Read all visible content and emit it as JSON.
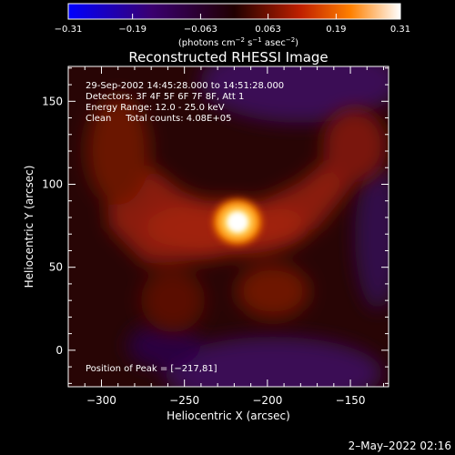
{
  "chart_data": {
    "type": "heatmap",
    "title": "Reconstructed RHESSI Image",
    "xlabel": "Heliocentric X (arcsec)",
    "ylabel": "Heliocentric Y (arcsec)",
    "xlim": [
      -320,
      -127
    ],
    "ylim": [
      -22,
      171
    ],
    "x_ticks": [
      -300,
      -250,
      -200,
      -150
    ],
    "y_ticks": [
      0,
      50,
      100,
      150
    ],
    "x_tick_labels": [
      "−300",
      "−250",
      "−200",
      "−150"
    ],
    "y_tick_labels": [
      "0",
      "50",
      "100",
      "150"
    ],
    "colorbar": {
      "min": -0.31,
      "max": 0.31,
      "ticks": [
        -0.31,
        -0.19,
        -0.063,
        0.063,
        0.19,
        0.31
      ],
      "tick_labels": [
        "−0.31",
        "−0.19",
        "−0.063",
        "0.063",
        "0.19",
        "0.31"
      ],
      "unit_main": "(photons cm",
      "unit_sup1": "−2",
      "unit_mid": " s",
      "unit_sup2": "−1",
      "unit_mid2": " asec",
      "unit_sup3": "−2",
      "unit_end": ")"
    },
    "peak": {
      "x": -217,
      "y": 81
    }
  },
  "info_lines": [
    "29-Sep-2002 14:45:28.000 to 14:51:28.000",
    "Detectors: 3F 4F 5F 6F 7F 8F, Att 1",
    "Energy Range: 12.0 - 25.0 keV",
    "Clean     Total counts: 4.08E+05"
  ],
  "peak_text": "Position of Peak = [−217,81]",
  "footer_date": "2–May–2022 02:16"
}
